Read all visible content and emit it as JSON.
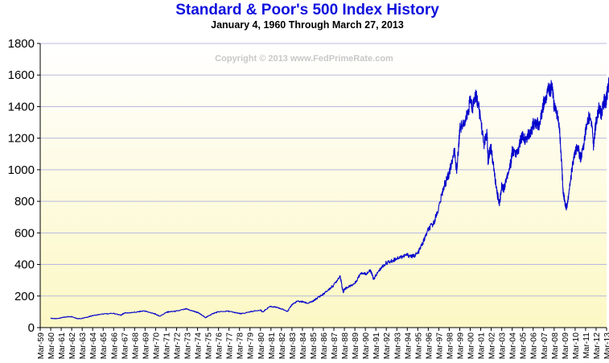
{
  "chart_data": {
    "type": "line",
    "title": "Standard & Poor's 500 Index History",
    "subtitle": "January 4, 1960  Through  March 27, 2013",
    "watermark": "Copyright © 2013 www.FedPrimeRate.com",
    "xlabel": "",
    "ylabel": "",
    "ylim": [
      0,
      1800
    ],
    "yticks": [
      0,
      200,
      400,
      600,
      800,
      1000,
      1200,
      1400,
      1600,
      1800
    ],
    "ytick_labels": [
      "0",
      "200",
      "400",
      "600",
      "800",
      "1000",
      "1200",
      "1400",
      "1600",
      "1800"
    ],
    "xlim": [
      1959.0,
      2013.0
    ],
    "xtick_labels": [
      "Mar-59",
      "Mar-60",
      "Mar-61",
      "Mar-62",
      "Mar-63",
      "Mar-64",
      "Mar-65",
      "Mar-66",
      "Mar-67",
      "Mar-68",
      "Mar-69",
      "Mar-70",
      "Mar-71",
      "Mar-72",
      "Mar-73",
      "Mar-74",
      "Mar-75",
      "Mar-76",
      "Mar-77",
      "Mar-78",
      "Mar-79",
      "Mar-80",
      "Mar-81",
      "Mar-82",
      "Mar-83",
      "Mar-84",
      "Mar-85",
      "Mar-86",
      "Mar-87",
      "Mar-88",
      "Mar-89",
      "Mar-90",
      "Mar-91",
      "Mar-92",
      "Mar-93",
      "Mar-94",
      "Mar-95",
      "Mar-96",
      "Mar-97",
      "Mar-98",
      "Mar-99",
      "Mar-00",
      "Mar-01",
      "Mar-02",
      "Mar-03",
      "Mar-04",
      "Mar-05",
      "Mar-06",
      "Mar-07",
      "Mar-08",
      "Mar-09",
      "Mar-10",
      "Mar-11",
      "Mar-12",
      "Mar-13"
    ],
    "grid": true,
    "colors": {
      "title": "#1010dd",
      "subtitle": "#000000",
      "line": "#0000cc",
      "gridline": "#b8b8e0",
      "watermark": "#c8c8c8",
      "bg_top": "#ffffff",
      "bg_bottom": "#fcf8c4"
    },
    "series": [
      {
        "name": "S&P 500",
        "x": [
          1960.0,
          1960.5,
          1961.0,
          1961.5,
          1962.0,
          1962.5,
          1962.8,
          1963.5,
          1964.0,
          1965.0,
          1966.0,
          1966.7,
          1967.0,
          1968.0,
          1968.9,
          1969.5,
          1970.0,
          1970.4,
          1971.0,
          1971.3,
          1972.0,
          1972.9,
          1973.5,
          1974.0,
          1974.5,
          1974.75,
          1975.0,
          1975.5,
          1976.0,
          1976.9,
          1977.5,
          1978.0,
          1978.2,
          1979.0,
          1980.0,
          1980.2,
          1980.9,
          1981.5,
          1982.0,
          1982.6,
          1983.0,
          1983.5,
          1984.0,
          1984.5,
          1985.0,
          1985.5,
          1986.0,
          1986.5,
          1987.0,
          1987.6,
          1987.8,
          1987.9,
          1988.0,
          1988.5,
          1989.0,
          1989.6,
          1990.0,
          1990.5,
          1990.8,
          1991.0,
          1991.5,
          1992.0,
          1992.5,
          1993.0,
          1993.5,
          1994.0,
          1994.5,
          1995.0,
          1995.5,
          1996.0,
          1996.5,
          1997.0,
          1997.5,
          1997.8,
          1998.0,
          1998.5,
          1998.7,
          1998.9,
          1999.0,
          1999.5,
          1999.8,
          2000.0,
          2000.2,
          2000.5,
          2000.7,
          2001.0,
          2001.3,
          2001.6,
          2001.7,
          2001.9,
          2002.0,
          2002.3,
          2002.55,
          2002.8,
          2003.0,
          2003.2,
          2003.5,
          2003.9,
          2004.0,
          2004.5,
          2004.8,
          2005.0,
          2005.3,
          2005.6,
          2005.9,
          2006.0,
          2006.4,
          2006.5,
          2006.9,
          2007.0,
          2007.2,
          2007.5,
          2007.65,
          2007.8,
          2008.0,
          2008.3,
          2008.5,
          2008.7,
          2008.85,
          2009.0,
          2009.2,
          2009.5,
          2009.8,
          2010.0,
          2010.3,
          2010.45,
          2010.6,
          2010.9,
          2011.0,
          2011.3,
          2011.6,
          2011.75,
          2011.9,
          2012.0,
          2012.3,
          2012.5,
          2012.8,
          2012.9,
          2013.0,
          2013.24
        ],
        "values": [
          59,
          56,
          62,
          68,
          70,
          58,
          56,
          66,
          76,
          86,
          90,
          78,
          92,
          96,
          106,
          95,
          85,
          72,
          96,
          100,
          104,
          118,
          106,
          96,
          76,
          63,
          72,
          90,
          100,
          104,
          96,
          89,
          88,
          100,
          112,
          98,
          135,
          128,
          118,
          104,
          146,
          166,
          164,
          154,
          166,
          192,
          212,
          240,
          270,
          330,
          250,
          224,
          245,
          262,
          280,
          350,
          340,
          360,
          305,
          330,
          378,
          410,
          420,
          440,
          450,
          460,
          450,
          470,
          540,
          620,
          660,
          760,
          900,
          940,
          980,
          1120,
          990,
          1150,
          1260,
          1310,
          1360,
          1450,
          1390,
          1480,
          1430,
          1320,
          1160,
          1230,
          1050,
          1140,
          1130,
          980,
          850,
          790,
          900,
          880,
          960,
          1050,
          1120,
          1100,
          1190,
          1210,
          1190,
          1230,
          1260,
          1290,
          1300,
          1260,
          1380,
          1420,
          1450,
          1520,
          1500,
          1550,
          1400,
          1350,
          1280,
          1050,
          870,
          800,
          760,
          900,
          1050,
          1110,
          1150,
          1080,
          1080,
          1190,
          1250,
          1330,
          1300,
          1150,
          1250,
          1300,
          1400,
          1350,
          1440,
          1420,
          1460,
          1560
        ]
      }
    ]
  }
}
